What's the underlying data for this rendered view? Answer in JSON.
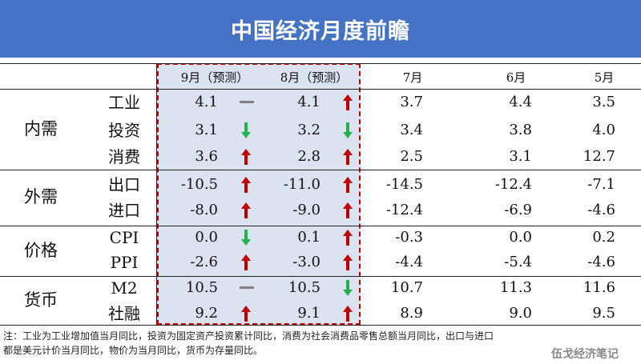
{
  "title": "中国经济月度前瞻",
  "columns": [
    "9月（预测）",
    "8月（预测）",
    "7月",
    "6月",
    "5月"
  ],
  "groups": [
    {
      "category": "内需",
      "rows": [
        {
          "label": "工业",
          "values": [
            "4.1",
            "4.1",
            "3.7",
            "4.4",
            "3.5"
          ],
          "ind9": "flat",
          "ind8": "up"
        },
        {
          "label": "投资",
          "values": [
            "3.1",
            "3.2",
            "3.4",
            "3.8",
            "4.0"
          ],
          "ind9": "down",
          "ind8": "down"
        },
        {
          "label": "消费",
          "values": [
            "3.6",
            "2.8",
            "2.5",
            "3.1",
            "12.7"
          ],
          "ind9": "up",
          "ind8": "up"
        }
      ]
    },
    {
      "category": "外需",
      "rows": [
        {
          "label": "出口",
          "values": [
            "-10.5",
            "-11.0",
            "-14.5",
            "-12.4",
            "-7.1"
          ],
          "ind9": "up",
          "ind8": "up"
        },
        {
          "label": "进口",
          "values": [
            "-8.0",
            "-9.0",
            "-12.4",
            "-6.9",
            "-4.6"
          ],
          "ind9": "up",
          "ind8": "up"
        }
      ]
    },
    {
      "category": "价格",
      "rows": [
        {
          "label": "CPI",
          "values": [
            "0.0",
            "0.1",
            "-0.3",
            "0.0",
            "0.2"
          ],
          "ind9": "down",
          "ind8": "up"
        },
        {
          "label": "PPI",
          "values": [
            "-2.6",
            "-3.0",
            "-4.4",
            "-5.4",
            "-4.6"
          ],
          "ind9": "up",
          "ind8": "up"
        }
      ]
    },
    {
      "category": "货币",
      "rows": [
        {
          "label": "M2",
          "values": [
            "10.5",
            "10.5",
            "10.7",
            "11.3",
            "11.6"
          ],
          "ind9": "flat",
          "ind8": "down"
        },
        {
          "label": "社融",
          "values": [
            "9.2",
            "9.1",
            "8.9",
            "9.0",
            "9.5"
          ],
          "ind9": "up",
          "ind8": "up"
        }
      ]
    }
  ],
  "note_line1": "注：工业为工业增加值当月同比，投资为固定资产投资累计同比，消费为社会消费品零售总额当月同比，出口与进口",
  "note_line2": "都是美元计价当月同比，物价为当月同比，货币为存量同比。",
  "watermark": "伍戈经济笔记",
  "colors": {
    "banner": "#4472c4",
    "highlight": "#dce3f0",
    "border": "#c00000",
    "up": "#c00000",
    "down": "#22b14c",
    "flat": "#808080"
  }
}
